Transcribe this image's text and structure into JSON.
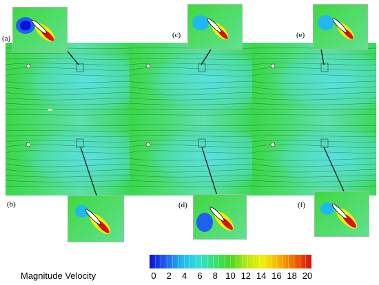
{
  "figure": {
    "panels": [
      {
        "id": "a",
        "label": "(a)"
      },
      {
        "id": "b",
        "label": "(b)"
      },
      {
        "id": "c",
        "label": "(c)"
      },
      {
        "id": "d",
        "label": "(d)"
      },
      {
        "id": "e",
        "label": "(e)"
      },
      {
        "id": "f",
        "label": "(f)"
      }
    ],
    "colorbar": {
      "title": "Magnitude Velocity",
      "ticks": [
        "0",
        "2",
        "4",
        "6",
        "8",
        "10",
        "12",
        "14",
        "16",
        "18",
        "20"
      ],
      "min": 0,
      "max": 20,
      "colormap": [
        "#0a10d8",
        "#1e60f0",
        "#20b8f0",
        "#30e0d8",
        "#38e070",
        "#44d820",
        "#b8e810",
        "#f0f000",
        "#f8b000",
        "#f06000",
        "#d81010"
      ]
    }
  }
}
